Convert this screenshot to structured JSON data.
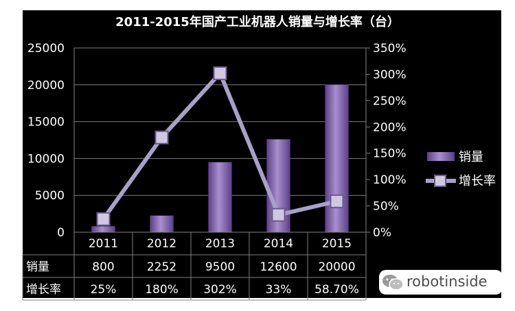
{
  "chart_data": {
    "type": "bar",
    "title": "2011-2015年国产工业机器人销量与增长率（台）",
    "categories": [
      "2011",
      "2012",
      "2013",
      "2014",
      "2015"
    ],
    "series": [
      {
        "name": "销量",
        "type": "bar",
        "axis": "left",
        "values": [
          800,
          2252,
          9500,
          12600,
          20000
        ]
      },
      {
        "name": "增长率",
        "type": "line",
        "axis": "right",
        "values": [
          25,
          180,
          302,
          33,
          58.7
        ]
      }
    ],
    "y_left": {
      "min": 0,
      "max": 25000,
      "ticks": [
        "0",
        "5000",
        "10000",
        "15000",
        "20000",
        "25000"
      ]
    },
    "y_right": {
      "min": 0,
      "max": 350,
      "ticks": [
        "0%",
        "50%",
        "100%",
        "150%",
        "200%",
        "250%",
        "300%",
        "350%"
      ]
    },
    "data_table": {
      "rows": [
        {
          "label": "销量",
          "cells": [
            "800",
            "2252",
            "9500",
            "12600",
            "20000"
          ]
        },
        {
          "label": "增长率",
          "cells": [
            "25%",
            "180%",
            "302%",
            "33%",
            "58.70%"
          ]
        }
      ]
    },
    "legend_position": "right",
    "grid": true,
    "colors": {
      "background": "#000000",
      "bar": "#7a5ea8",
      "bar_light": "#a98fd0",
      "line": "#a8a0c8",
      "marker": "#d0c8e0",
      "text": "#ffffff",
      "grid": "#7f7f7f"
    }
  },
  "watermark": {
    "text": "robotinside"
  }
}
